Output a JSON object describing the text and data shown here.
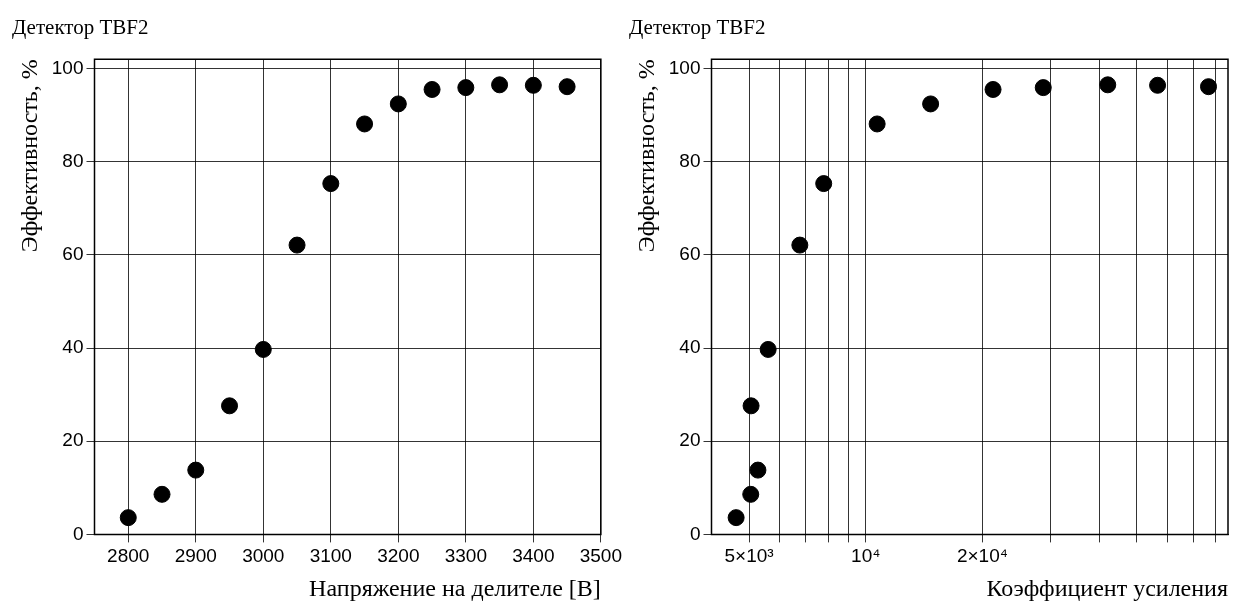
{
  "chart_data": [
    {
      "type": "scatter",
      "title": "Детектор TBF2",
      "xlabel": "Напряжение на делителе [В]",
      "ylabel": "Эффективность, %",
      "x": [
        2800,
        2850,
        2900,
        2950,
        3000,
        3050,
        3100,
        3150,
        3200,
        3250,
        3300,
        3350,
        3400,
        3450
      ],
      "values": [
        3.6,
        8.6,
        13.8,
        27.6,
        39.7,
        62.1,
        75.3,
        88.1,
        92.4,
        95.5,
        95.9,
        96.5,
        96.4,
        96.1
      ],
      "color": "#000000",
      "marker": "circle",
      "xlim": [
        2750,
        3500
      ],
      "xticks": [
        2800,
        2900,
        3000,
        3100,
        3200,
        3300,
        3400,
        3500
      ],
      "ylim": [
        0,
        102
      ],
      "yticks": [
        0,
        20,
        40,
        60,
        80,
        100
      ],
      "grid": true
    },
    {
      "type": "scatter",
      "title": "Детектор TBF2",
      "xlabel": "Коэффициент усиления",
      "ylabel": "Эффективность, %",
      "x": [
        4630,
        5050,
        5270,
        5060,
        5600,
        6760,
        7790,
        10700,
        14700,
        21300,
        28700,
        42100,
        56600,
        76600
      ],
      "values": [
        3.6,
        8.6,
        13.8,
        27.6,
        39.7,
        62.1,
        75.3,
        88.1,
        92.4,
        95.5,
        95.9,
        96.5,
        96.4,
        96.1
      ],
      "color": "#000000",
      "marker": "circle",
      "log": "x",
      "xlim": [
        4000,
        86000
      ],
      "xticks": [
        {
          "value": 5000,
          "label": "5×10³"
        },
        {
          "value": 6000,
          "label": null
        },
        {
          "value": 7000,
          "label": null
        },
        {
          "value": 8000,
          "label": null
        },
        {
          "value": 9000,
          "label": null
        },
        {
          "value": 10000,
          "label": "10⁴"
        },
        {
          "value": 20000,
          "label": "2×10⁴"
        },
        {
          "value": 30000,
          "label": null
        },
        {
          "value": 40000,
          "label": null
        },
        {
          "value": 50000,
          "label": null
        },
        {
          "value": 60000,
          "label": null
        },
        {
          "value": 70000,
          "label": null
        },
        {
          "value": 80000,
          "label": null
        }
      ],
      "ylim": [
        0,
        102
      ],
      "yticks": [
        0,
        20,
        40,
        60,
        80,
        100
      ],
      "grid": true
    }
  ]
}
